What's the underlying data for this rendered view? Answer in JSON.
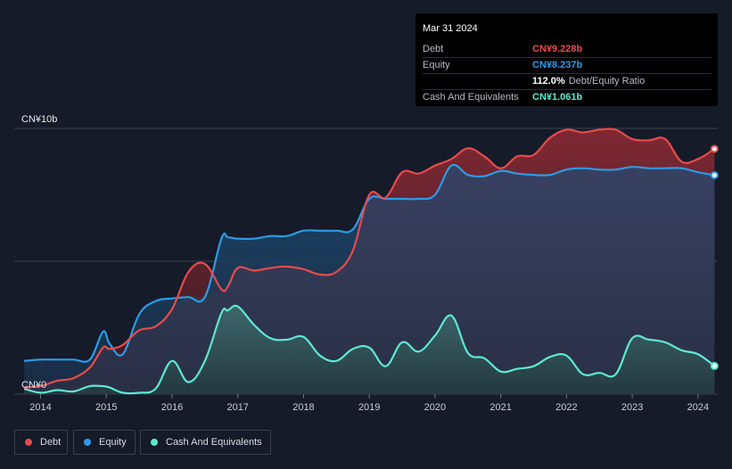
{
  "tooltip": {
    "date": "Mar 31 2024",
    "rows": [
      {
        "label": "Debt",
        "value": "CN¥9.228b",
        "color": "#e64b4b"
      },
      {
        "label": "Equity",
        "value": "CN¥8.237b",
        "color": "#2d9be6"
      },
      {
        "label": "",
        "value": "112.0%",
        "suffix": "Debt/Equity Ratio",
        "color": "#ffffff"
      },
      {
        "label": "Cash And Equivalents",
        "value": "CN¥1.061b",
        "color": "#5ee8cf"
      }
    ]
  },
  "legend": [
    {
      "label": "Debt",
      "color": "#e64b4b"
    },
    {
      "label": "Equity",
      "color": "#2d9be6"
    },
    {
      "label": "Cash And Equivalents",
      "color": "#5ee8cf"
    }
  ],
  "chart_data": {
    "type": "area",
    "y_unit": "CN¥ billions",
    "ylim": [
      0,
      10
    ],
    "y_tick_labels": [
      {
        "value": 10,
        "label": "CN¥10b"
      },
      {
        "value": 0,
        "label": "CN¥0"
      }
    ],
    "xlim": [
      2013.6,
      2024.3
    ],
    "x_ticks": [
      2014,
      2015,
      2016,
      2017,
      2018,
      2019,
      2020,
      2021,
      2022,
      2023,
      2024
    ],
    "grid": true,
    "legend_position": "bottom-left",
    "series": [
      {
        "name": "Debt",
        "color": "#e64b4b",
        "points": [
          [
            2013.75,
            0.25
          ],
          [
            2014.0,
            0.3
          ],
          [
            2014.25,
            0.5
          ],
          [
            2014.5,
            0.6
          ],
          [
            2014.75,
            1.0
          ],
          [
            2014.95,
            1.75
          ],
          [
            2015.05,
            1.7
          ],
          [
            2015.25,
            1.85
          ],
          [
            2015.5,
            2.4
          ],
          [
            2015.75,
            2.55
          ],
          [
            2016.0,
            3.2
          ],
          [
            2016.25,
            4.6
          ],
          [
            2016.5,
            4.9
          ],
          [
            2016.75,
            3.95
          ],
          [
            2016.85,
            4.05
          ],
          [
            2017.0,
            4.75
          ],
          [
            2017.25,
            4.65
          ],
          [
            2017.5,
            4.75
          ],
          [
            2017.75,
            4.8
          ],
          [
            2018.0,
            4.7
          ],
          [
            2018.25,
            4.5
          ],
          [
            2018.5,
            4.6
          ],
          [
            2018.75,
            5.4
          ],
          [
            2019.0,
            7.5
          ],
          [
            2019.25,
            7.4
          ],
          [
            2019.5,
            8.35
          ],
          [
            2019.75,
            8.3
          ],
          [
            2020.0,
            8.6
          ],
          [
            2020.25,
            8.85
          ],
          [
            2020.5,
            9.25
          ],
          [
            2020.75,
            8.95
          ],
          [
            2021.0,
            8.5
          ],
          [
            2021.25,
            8.95
          ],
          [
            2021.5,
            9.0
          ],
          [
            2021.75,
            9.65
          ],
          [
            2022.0,
            9.95
          ],
          [
            2022.25,
            9.85
          ],
          [
            2022.5,
            9.95
          ],
          [
            2022.75,
            9.95
          ],
          [
            2023.0,
            9.6
          ],
          [
            2023.25,
            9.55
          ],
          [
            2023.5,
            9.6
          ],
          [
            2023.75,
            8.75
          ],
          [
            2024.0,
            8.85
          ],
          [
            2024.25,
            9.23
          ]
        ]
      },
      {
        "name": "Equity",
        "color": "#2d9be6",
        "points": [
          [
            2013.75,
            1.25
          ],
          [
            2014.0,
            1.3
          ],
          [
            2014.25,
            1.3
          ],
          [
            2014.5,
            1.3
          ],
          [
            2014.75,
            1.3
          ],
          [
            2014.95,
            2.35
          ],
          [
            2015.05,
            1.9
          ],
          [
            2015.25,
            1.5
          ],
          [
            2015.5,
            3.0
          ],
          [
            2015.75,
            3.5
          ],
          [
            2016.0,
            3.6
          ],
          [
            2016.25,
            3.65
          ],
          [
            2016.5,
            3.65
          ],
          [
            2016.75,
            5.85
          ],
          [
            2016.85,
            5.9
          ],
          [
            2017.0,
            5.85
          ],
          [
            2017.25,
            5.85
          ],
          [
            2017.5,
            5.95
          ],
          [
            2017.75,
            5.95
          ],
          [
            2018.0,
            6.15
          ],
          [
            2018.25,
            6.15
          ],
          [
            2018.5,
            6.15
          ],
          [
            2018.75,
            6.2
          ],
          [
            2019.0,
            7.35
          ],
          [
            2019.25,
            7.35
          ],
          [
            2019.5,
            7.35
          ],
          [
            2019.75,
            7.35
          ],
          [
            2020.0,
            7.5
          ],
          [
            2020.25,
            8.6
          ],
          [
            2020.5,
            8.25
          ],
          [
            2020.75,
            8.2
          ],
          [
            2021.0,
            8.4
          ],
          [
            2021.25,
            8.3
          ],
          [
            2021.5,
            8.25
          ],
          [
            2021.75,
            8.25
          ],
          [
            2022.0,
            8.45
          ],
          [
            2022.25,
            8.5
          ],
          [
            2022.5,
            8.45
          ],
          [
            2022.75,
            8.45
          ],
          [
            2023.0,
            8.55
          ],
          [
            2023.25,
            8.5
          ],
          [
            2023.5,
            8.5
          ],
          [
            2023.75,
            8.5
          ],
          [
            2024.0,
            8.35
          ],
          [
            2024.25,
            8.24
          ]
        ]
      },
      {
        "name": "Cash And Equivalents",
        "color": "#5ee8cf",
        "points": [
          [
            2013.75,
            0.2
          ],
          [
            2014.0,
            0.05
          ],
          [
            2014.25,
            0.15
          ],
          [
            2014.5,
            0.1
          ],
          [
            2014.75,
            0.3
          ],
          [
            2014.95,
            0.3
          ],
          [
            2015.05,
            0.25
          ],
          [
            2015.25,
            0.05
          ],
          [
            2015.5,
            0.05
          ],
          [
            2015.75,
            0.2
          ],
          [
            2016.0,
            1.25
          ],
          [
            2016.25,
            0.45
          ],
          [
            2016.5,
            1.25
          ],
          [
            2016.75,
            3.05
          ],
          [
            2016.85,
            3.15
          ],
          [
            2017.0,
            3.3
          ],
          [
            2017.25,
            2.6
          ],
          [
            2017.5,
            2.1
          ],
          [
            2017.75,
            2.05
          ],
          [
            2018.0,
            2.15
          ],
          [
            2018.25,
            1.45
          ],
          [
            2018.5,
            1.25
          ],
          [
            2018.75,
            1.7
          ],
          [
            2019.0,
            1.75
          ],
          [
            2019.25,
            1.05
          ],
          [
            2019.5,
            1.95
          ],
          [
            2019.75,
            1.6
          ],
          [
            2020.0,
            2.2
          ],
          [
            2020.25,
            2.95
          ],
          [
            2020.5,
            1.55
          ],
          [
            2020.75,
            1.35
          ],
          [
            2021.0,
            0.85
          ],
          [
            2021.25,
            0.95
          ],
          [
            2021.5,
            1.05
          ],
          [
            2021.75,
            1.4
          ],
          [
            2022.0,
            1.45
          ],
          [
            2022.25,
            0.75
          ],
          [
            2022.5,
            0.8
          ],
          [
            2022.75,
            0.75
          ],
          [
            2023.0,
            2.1
          ],
          [
            2023.25,
            2.05
          ],
          [
            2023.5,
            1.95
          ],
          [
            2023.75,
            1.65
          ],
          [
            2024.0,
            1.5
          ],
          [
            2024.25,
            1.06
          ]
        ]
      }
    ]
  }
}
